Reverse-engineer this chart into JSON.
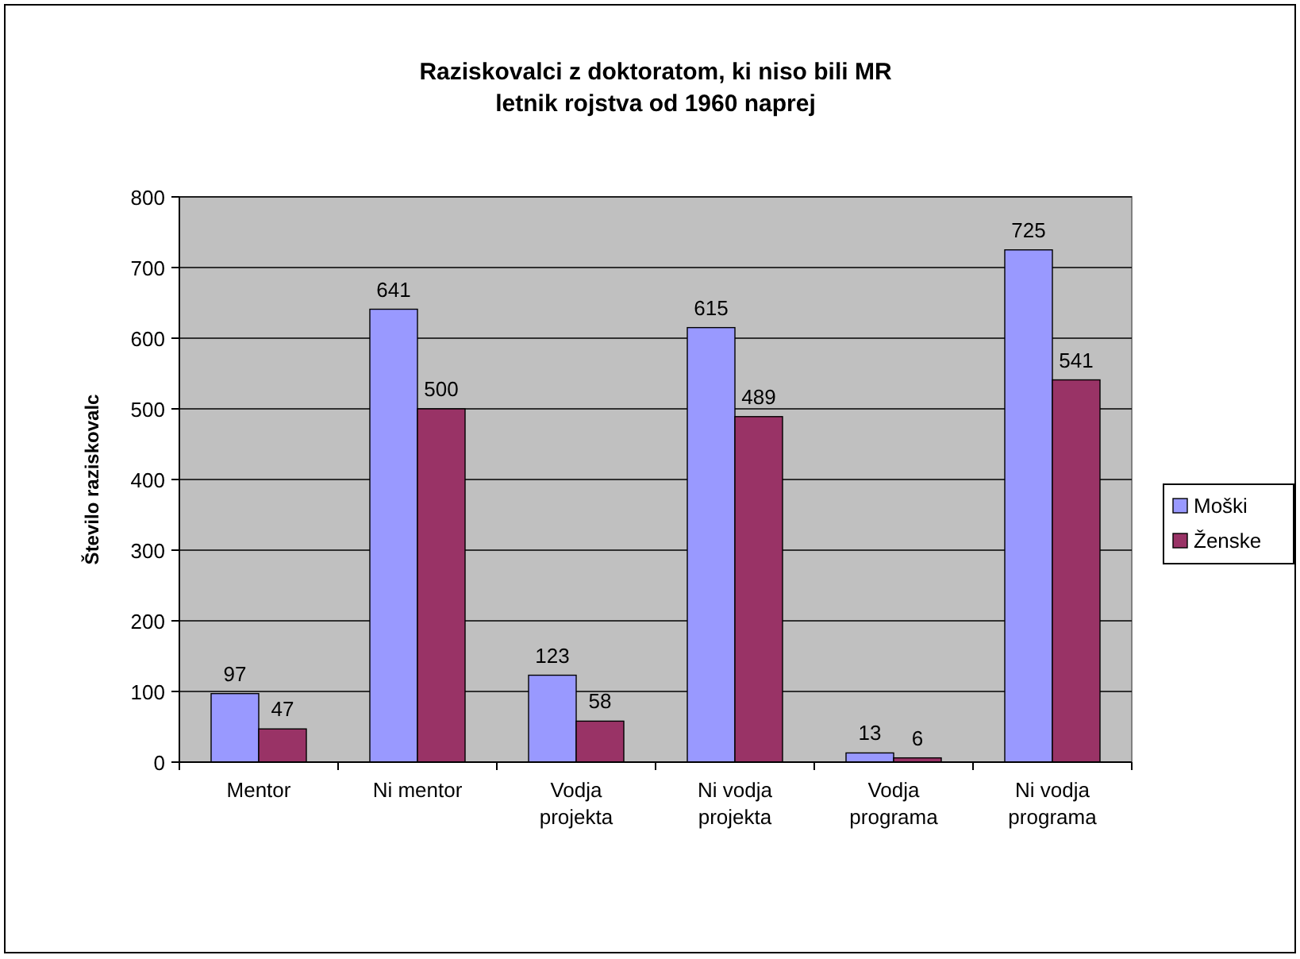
{
  "chart_data": {
    "type": "bar",
    "title": "Raziskovalci z doktoratom, ki niso bili MR",
    "subtitle": "letnik rojstva od 1960 naprej",
    "ylabel": "Število raziskovalc",
    "categories": [
      "Mentor",
      "Ni mentor",
      "Vodja projekta",
      "Ni vodja projekta",
      "Vodja programa",
      "Ni vodja programa"
    ],
    "series": [
      {
        "name": "Moški",
        "color": "#9999ff",
        "values": [
          97,
          641,
          123,
          615,
          13,
          725
        ]
      },
      {
        "name": "Ženske",
        "color": "#993366",
        "values": [
          47,
          500,
          58,
          489,
          6,
          541
        ]
      }
    ],
    "ylim": [
      0,
      800
    ],
    "yticks": [
      0,
      100,
      200,
      300,
      400,
      500,
      600,
      700,
      800
    ],
    "grid": "y",
    "legend": "right",
    "data_labels": true
  }
}
